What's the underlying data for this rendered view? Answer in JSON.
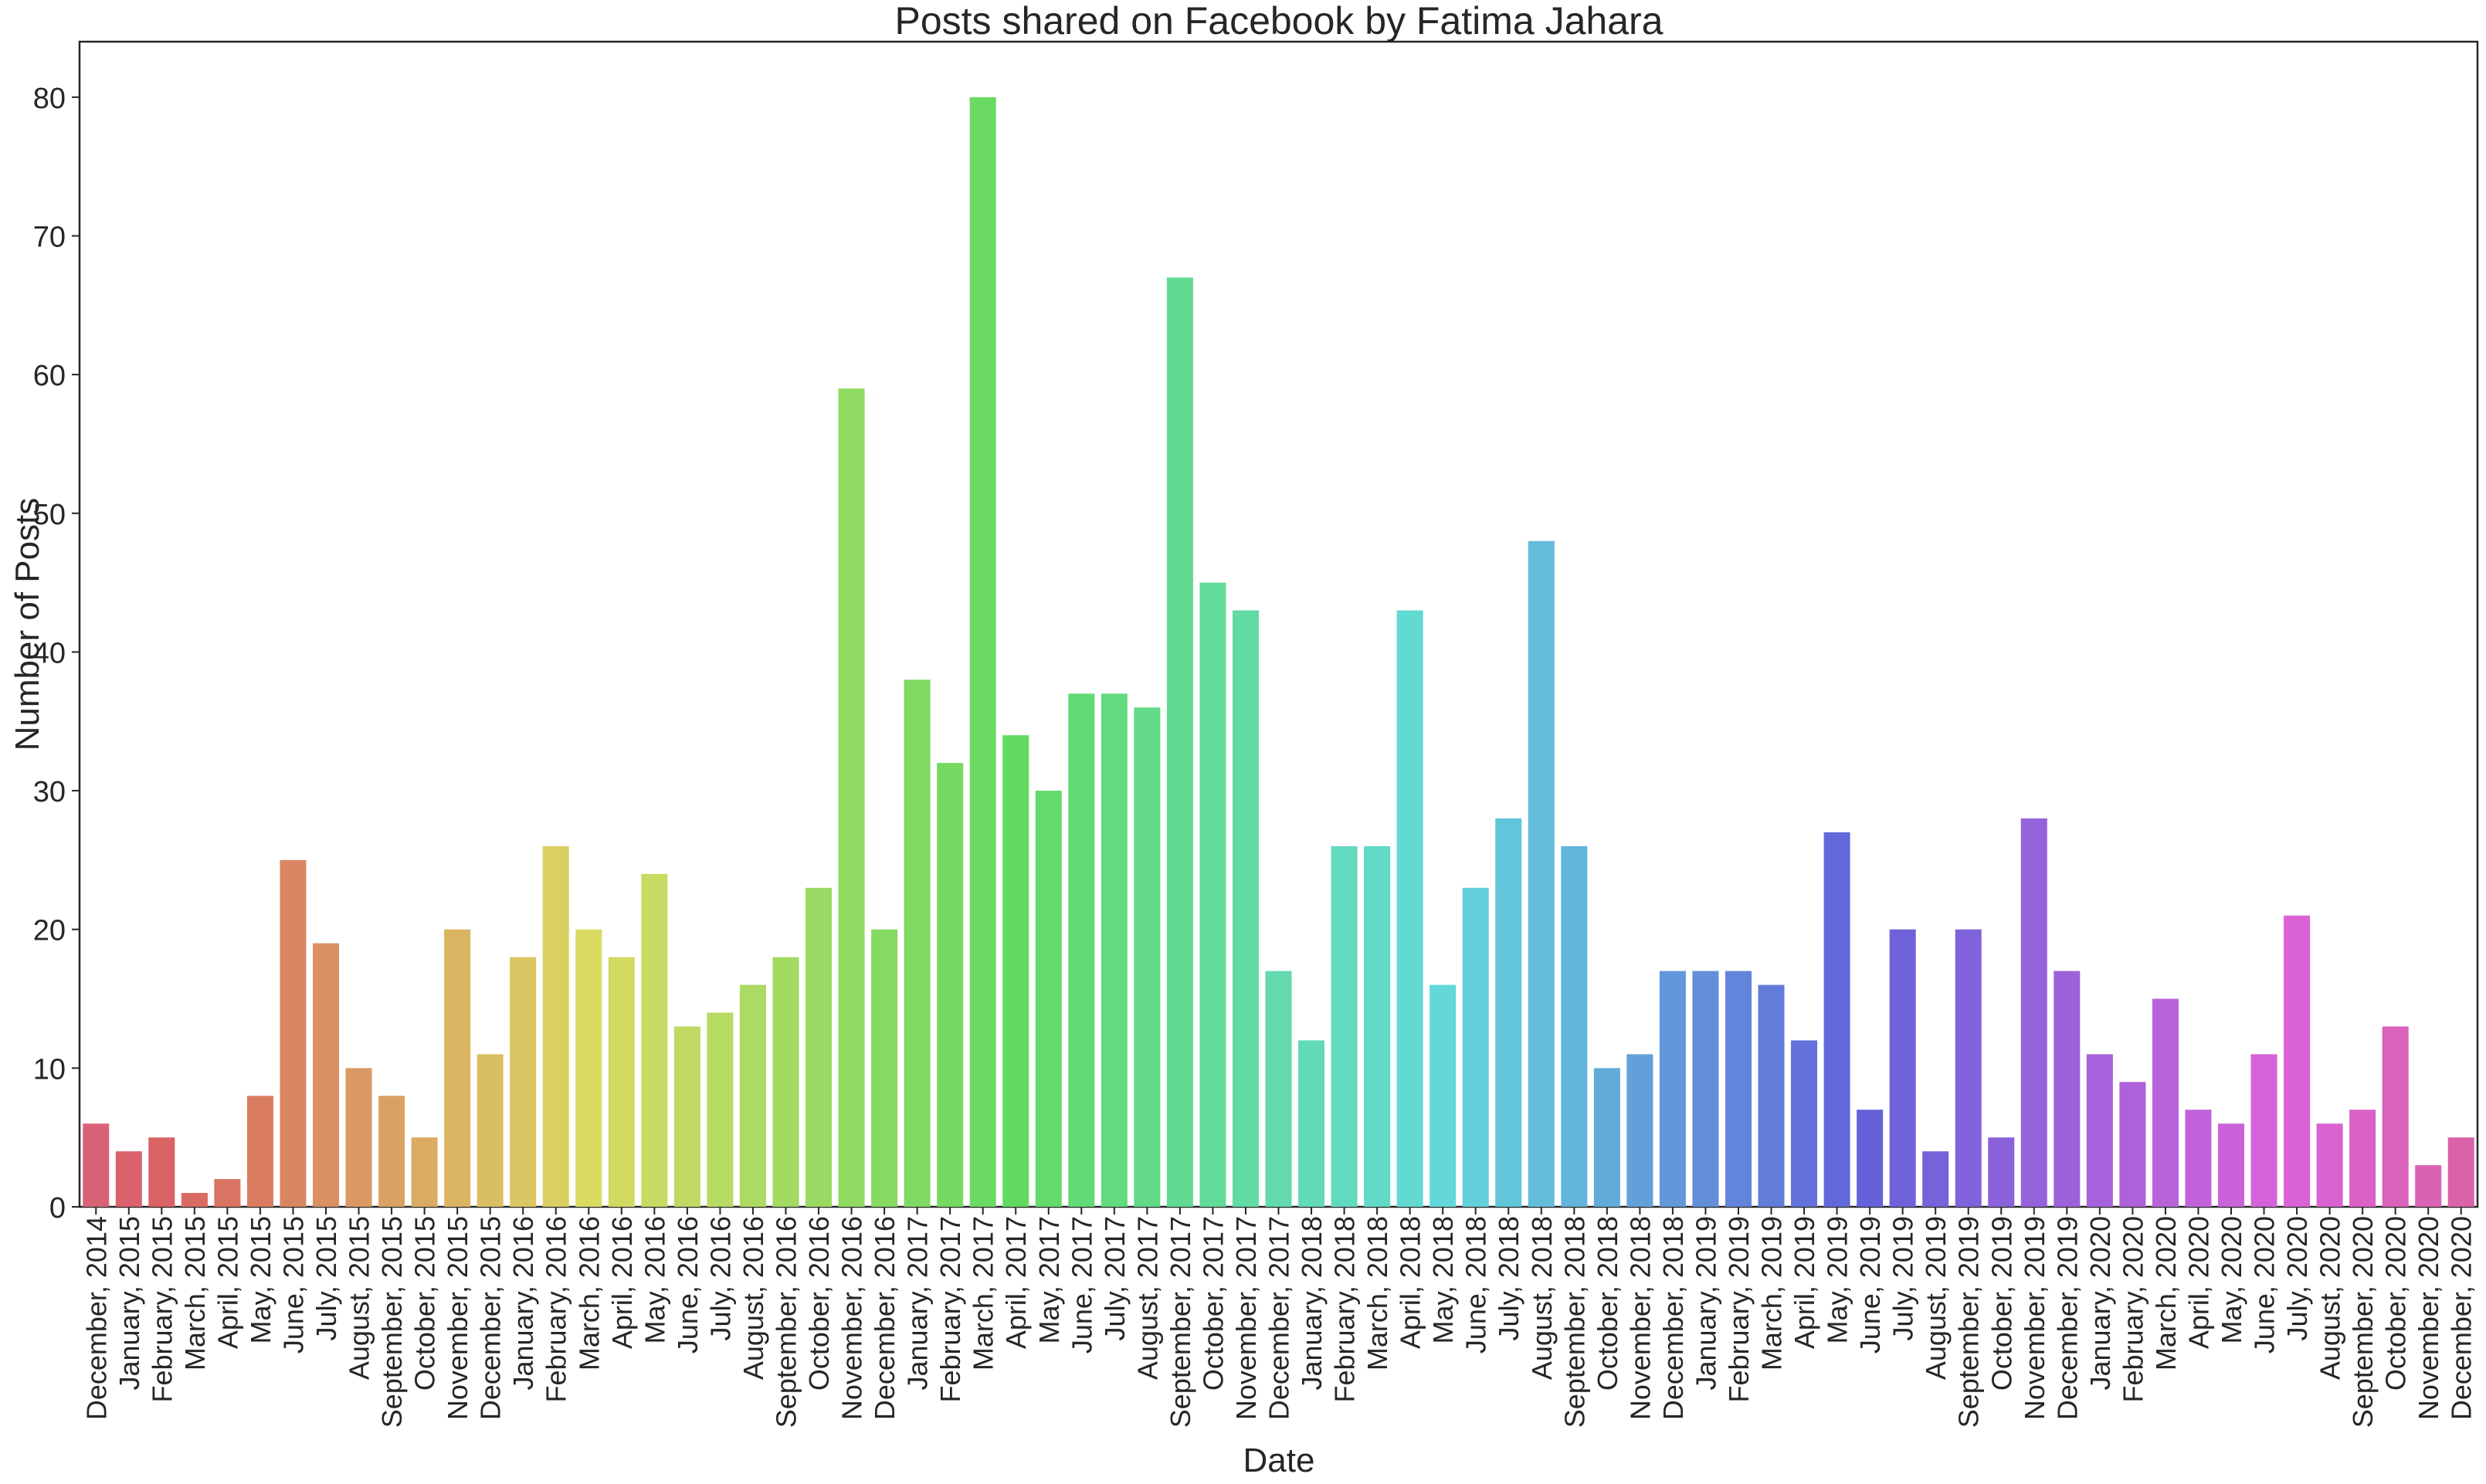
{
  "chart_data": {
    "type": "bar",
    "title": "Posts shared on Facebook by Fatima Jahara",
    "xlabel": "Date",
    "ylabel": "Number of Posts",
    "ylim": [
      0,
      84
    ],
    "yticks": [
      0,
      10,
      20,
      30,
      40,
      50,
      60,
      70,
      80
    ],
    "grid": false,
    "categories": [
      "December, 2014",
      "January, 2015",
      "February, 2015",
      "March, 2015",
      "April, 2015",
      "May, 2015",
      "June, 2015",
      "July, 2015",
      "August, 2015",
      "September, 2015",
      "October, 2015",
      "November, 2015",
      "December, 2015",
      "January, 2016",
      "February, 2016",
      "March, 2016",
      "April, 2016",
      "May, 2016",
      "June, 2016",
      "July, 2016",
      "August, 2016",
      "September, 2016",
      "October, 2016",
      "November, 2016",
      "December, 2016",
      "January, 2017",
      "February, 2017",
      "March, 2017",
      "April, 2017",
      "May, 2017",
      "June, 2017",
      "July, 2017",
      "August, 2017",
      "September, 2017",
      "October, 2017",
      "November, 2017",
      "December, 2017",
      "January, 2018",
      "February, 2018",
      "March, 2018",
      "April, 2018",
      "May, 2018",
      "June, 2018",
      "July, 2018",
      "August, 2018",
      "September, 2018",
      "October, 2018",
      "November, 2018",
      "December, 2018",
      "January, 2019",
      "February, 2019",
      "March, 2019",
      "April, 2019",
      "May, 2019",
      "June, 2019",
      "July, 2019",
      "August, 2019",
      "September, 2019",
      "October, 2019",
      "November, 2019",
      "December, 2019",
      "January, 2020",
      "February, 2020",
      "March, 2020",
      "April, 2020",
      "May, 2020",
      "June, 2020",
      "July, 2020",
      "August, 2020",
      "September, 2020",
      "October, 2020",
      "November, 2020",
      "December, 2020"
    ],
    "values": [
      6,
      4,
      5,
      1,
      2,
      8,
      25,
      19,
      10,
      8,
      5,
      20,
      11,
      18,
      26,
      20,
      18,
      24,
      13,
      14,
      16,
      18,
      23,
      59,
      20,
      38,
      32,
      80,
      34,
      30,
      37,
      37,
      36,
      67,
      45,
      43,
      17,
      12,
      26,
      26,
      43,
      16,
      23,
      28,
      48,
      26,
      10,
      11,
      17,
      17,
      17,
      16,
      12,
      27,
      7,
      20,
      4,
      20,
      5,
      28,
      17,
      11,
      9,
      15,
      7,
      6,
      11,
      21,
      6,
      7,
      13,
      3,
      5
    ]
  }
}
